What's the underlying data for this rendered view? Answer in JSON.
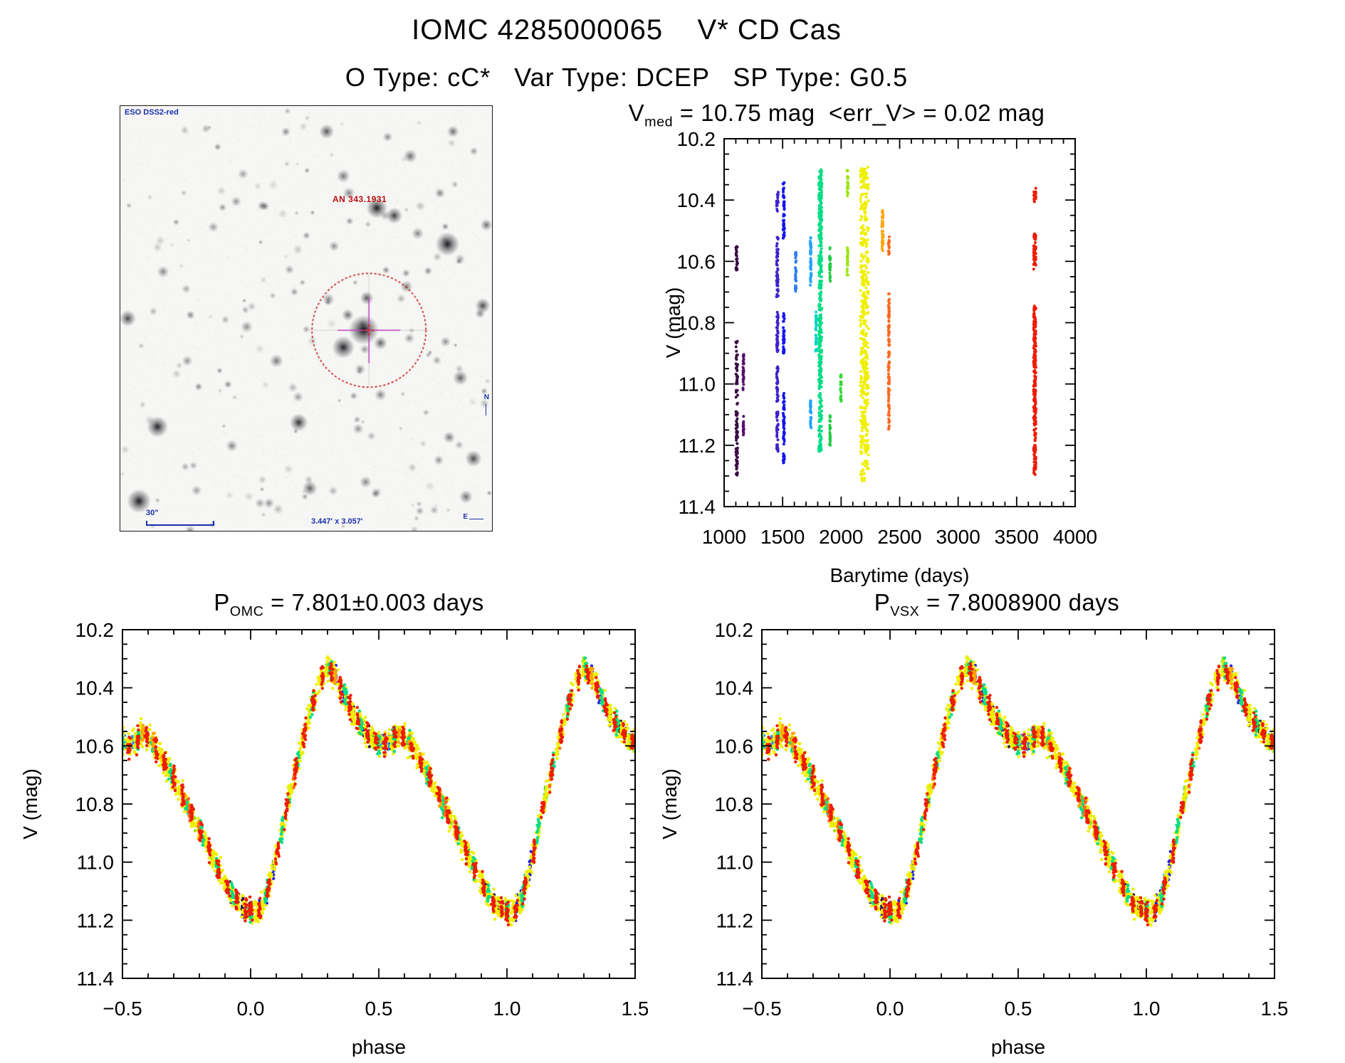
{
  "header": {
    "title": "IOMC 4285000065    V* CD Cas",
    "subtitle": "O Type: cC*   Var Type: DCEP   SP Type: G0.5"
  },
  "finder": {
    "survey_label": "ESO DSS2-red",
    "target_label": "AN 343.1931",
    "scale_label": "30\"",
    "fov_label": "3.447' x 3.057'",
    "compass_n": "N",
    "compass_e": "E",
    "annotation_color": "#1a2fae",
    "marker_color": "#c01010",
    "crosshair_color": "#c040c0"
  },
  "chart_data": [
    {
      "id": "barytime",
      "type": "scatter",
      "title_lead": "V",
      "title_sub": "med",
      "title_rest": " = 10.75 mag  <err_V> = 0.02 mag",
      "xlabel": "Barytime (days)",
      "ylabel": "V (mag)",
      "xlim": [
        1000,
        4000
      ],
      "ylim": [
        10.2,
        11.4
      ],
      "xticks": [
        1000,
        1500,
        2000,
        2500,
        3000,
        3500,
        4000
      ],
      "xtick_labels": [
        "1000",
        "1500",
        "2000",
        "2500",
        "3000",
        "3500",
        "4000"
      ],
      "yticks": [
        10.2,
        10.4,
        10.6,
        10.8,
        11.0,
        11.2,
        11.4
      ],
      "ytick_labels": [
        "10.2",
        "10.4",
        "10.6",
        "10.8",
        "11.0",
        "11.2",
        "11.4"
      ],
      "xminor": 100,
      "yminor": 0.05,
      "grid": false,
      "legend": "none",
      "epochs": [
        {
          "day": 1108,
          "spread": 16,
          "color": "#3a0d43",
          "segments": [
            [
              10.55,
              10.63
            ],
            [
              10.86,
              11.0
            ],
            [
              11.02,
              11.3
            ]
          ]
        },
        {
          "day": 1165,
          "spread": 8,
          "color": "#571070",
          "segments": [
            [
              10.9,
              11.02
            ],
            [
              11.1,
              11.17
            ]
          ]
        },
        {
          "day": 1455,
          "spread": 14,
          "color": "#3d23cc",
          "segments": [
            [
              10.37,
              10.44
            ],
            [
              10.52,
              10.72
            ],
            [
              10.76,
              10.9
            ],
            [
              10.94,
              11.06
            ],
            [
              11.09,
              11.22
            ]
          ]
        },
        {
          "day": 1510,
          "spread": 12,
          "color": "#1414f0",
          "segments": [
            [
              10.34,
              10.53
            ],
            [
              10.77,
              10.9
            ],
            [
              11.03,
              11.2
            ],
            [
              11.22,
              11.27
            ]
          ]
        },
        {
          "day": 1612,
          "spread": 8,
          "color": "#2f7df0",
          "segments": [
            [
              10.56,
              10.7
            ]
          ]
        },
        {
          "day": 1740,
          "spread": 10,
          "color": "#22a4ff",
          "segments": [
            [
              10.52,
              10.68
            ],
            [
              11.05,
              11.15
            ]
          ]
        },
        {
          "day": 1786,
          "spread": 8,
          "color": "#00d4c8",
          "segments": [
            [
              10.76,
              10.9
            ]
          ]
        },
        {
          "day": 1822,
          "spread": 26,
          "color": "#00dd84",
          "dense": true,
          "segments": [
            [
              10.3,
              11.22
            ]
          ]
        },
        {
          "day": 1905,
          "spread": 8,
          "color": "#22cc45",
          "segments": [
            [
              10.55,
              10.67
            ],
            [
              11.1,
              11.2
            ]
          ]
        },
        {
          "day": 1998,
          "spread": 8,
          "color": "#30d935",
          "segments": [
            [
              10.97,
              11.06
            ]
          ]
        },
        {
          "day": 2055,
          "spread": 8,
          "color": "#9ae409",
          "segments": [
            [
              10.3,
              10.39
            ],
            [
              10.55,
              10.65
            ]
          ]
        },
        {
          "day": 2200,
          "spread": 70,
          "color": "#efef00",
          "dense": true,
          "segments": [
            [
              10.29,
              11.32
            ]
          ]
        },
        {
          "day": 2355,
          "spread": 12,
          "color": "#ffa400",
          "segments": [
            [
              10.43,
              10.57
            ]
          ]
        },
        {
          "day": 2408,
          "spread": 10,
          "color": "#ff6a22",
          "segments": [
            [
              10.52,
              10.58
            ],
            [
              10.7,
              11.15
            ]
          ]
        },
        {
          "day": 3655,
          "spread": 20,
          "color": "#ee1c00",
          "dense": true,
          "segments": [
            [
              10.36,
              10.41
            ],
            [
              10.51,
              10.63
            ],
            [
              10.74,
              11.3
            ]
          ]
        }
      ]
    },
    {
      "id": "phase_omc",
      "type": "scatter",
      "title_lead": "P",
      "title_sub": "OMC",
      "title_rest": " = 7.801±0.003 days",
      "xlabel": "phase",
      "ylabel": "V (mag)",
      "xlim": [
        -0.5,
        1.5
      ],
      "ylim": [
        10.2,
        11.4
      ],
      "xticks": [
        -0.5,
        0.0,
        0.5,
        1.0,
        1.5
      ],
      "xtick_labels": [
        "−0.5",
        "0.0",
        "0.5",
        "1.0",
        "1.5"
      ],
      "yticks": [
        10.2,
        10.4,
        10.6,
        10.8,
        11.0,
        11.2,
        11.4
      ],
      "ytick_labels": [
        "10.2",
        "10.4",
        "10.6",
        "10.8",
        "11.0",
        "11.2",
        "11.4"
      ],
      "xminor": 0.1,
      "yminor": 0.05,
      "grid": false,
      "legend": "none",
      "period_days": 7.801,
      "light_curve_model": {
        "phases": [
          0.0,
          0.03,
          0.06,
          0.09,
          0.12,
          0.16,
          0.2,
          0.24,
          0.28,
          0.3,
          0.33,
          0.36,
          0.4,
          0.44,
          0.48,
          0.52,
          0.55,
          0.58,
          0.62,
          0.66,
          0.7,
          0.74,
          0.78,
          0.82,
          0.86,
          0.9,
          0.94,
          0.97,
          1.0
        ],
        "mags": [
          11.17,
          11.17,
          11.12,
          11.02,
          10.9,
          10.74,
          10.59,
          10.46,
          10.36,
          10.33,
          10.36,
          10.42,
          10.49,
          10.54,
          10.58,
          10.6,
          10.58,
          10.56,
          10.59,
          10.65,
          10.71,
          10.78,
          10.85,
          10.92,
          11.0,
          11.07,
          11.13,
          11.16,
          11.17
        ]
      },
      "stripe_groups": [
        {
          "name": "cyan",
          "color": "#00d4c8",
          "n": 10,
          "jitter": 0.006,
          "sigma": 0.035,
          "phases": [
            0.56,
            0.6
          ]
        },
        {
          "name": "light-blue",
          "color": "#22a4ff",
          "n": 11,
          "jitter": 0.006,
          "sigma": 0.035,
          "phases": [
            0.07,
            0.51,
            0.54
          ]
        },
        {
          "name": "blue",
          "color": "#2222e0",
          "n": 12,
          "jitter": 0.006,
          "sigma": 0.04,
          "phases": [
            0.035,
            0.06,
            0.09,
            0.33,
            0.36,
            0.52,
            0.55,
            0.97
          ]
        },
        {
          "name": "dark-purple",
          "color": "#3a0d43",
          "n": 12,
          "jitter": 0.005,
          "sigma": 0.04,
          "phases": [
            0.4,
            0.44,
            0.46,
            0.92,
            0.95,
            0.97,
            1.0
          ]
        },
        {
          "name": "green",
          "color": "#22cc45",
          "n": 11,
          "jitter": 0.006,
          "sigma": 0.04,
          "phases": [
            0.15,
            0.48,
            0.85
          ]
        },
        {
          "name": "chartreuse",
          "color": "#9ae409",
          "n": 11,
          "jitter": 0.006,
          "sigma": 0.04,
          "phases": [
            0.3,
            0.62,
            0.78
          ]
        },
        {
          "name": "yellow",
          "color": "#efef00",
          "n": 26,
          "jitter": 0.013,
          "sigma": 0.05,
          "phases": [
            0.0,
            0.025,
            0.05,
            0.075,
            0.1,
            0.125,
            0.15,
            0.175,
            0.2,
            0.225,
            0.25,
            0.275,
            0.3,
            0.325,
            0.35,
            0.375,
            0.4,
            0.425,
            0.45,
            0.475,
            0.5,
            0.525,
            0.55,
            0.575,
            0.6,
            0.625,
            0.65,
            0.675,
            0.7,
            0.725,
            0.75,
            0.775,
            0.8,
            0.825,
            0.85,
            0.875,
            0.9,
            0.925,
            0.95,
            0.975
          ]
        },
        {
          "name": "spring-green",
          "color": "#00dd84",
          "n": 15,
          "jitter": 0.009,
          "sigma": 0.045,
          "phases": [
            0.0,
            0.06,
            0.12,
            0.18,
            0.24,
            0.31,
            0.37,
            0.43,
            0.5,
            0.56,
            0.62,
            0.69,
            0.75,
            0.81,
            0.87,
            0.93
          ]
        },
        {
          "name": "orange",
          "color": "#ffa400",
          "n": 12,
          "jitter": 0.007,
          "sigma": 0.04,
          "phases": [
            0.33,
            0.58,
            0.62,
            0.66,
            0.7,
            0.74
          ]
        },
        {
          "name": "orange-red",
          "color": "#ff6a22",
          "n": 12,
          "jitter": 0.006,
          "sigma": 0.04,
          "phases": [
            0.17,
            0.21,
            0.76,
            0.8
          ]
        },
        {
          "name": "red",
          "color": "#ee1c00",
          "n": 18,
          "jitter": 0.008,
          "sigma": 0.045,
          "phases": [
            0.0,
            0.035,
            0.07,
            0.105,
            0.14,
            0.175,
            0.21,
            0.245,
            0.28,
            0.315,
            0.35,
            0.385,
            0.42,
            0.455,
            0.49,
            0.525,
            0.56,
            0.595,
            0.63,
            0.665,
            0.7,
            0.735,
            0.77,
            0.805,
            0.84,
            0.875,
            0.91,
            0.945,
            0.98
          ]
        }
      ]
    },
    {
      "id": "phase_vsx",
      "type": "scatter",
      "title_lead": "P",
      "title_sub": "VSX",
      "title_rest": " = 7.8008900 days",
      "xlabel": "phase",
      "ylabel": "V (mag)",
      "xlim": [
        -0.5,
        1.5
      ],
      "ylim": [
        10.2,
        11.4
      ],
      "xticks": [
        -0.5,
        0.0,
        0.5,
        1.0,
        1.5
      ],
      "xtick_labels": [
        "−0.5",
        "0.0",
        "0.5",
        "1.0",
        "1.5"
      ],
      "yticks": [
        10.2,
        10.4,
        10.6,
        10.8,
        11.0,
        11.2,
        11.4
      ],
      "ytick_labels": [
        "10.2",
        "10.4",
        "10.6",
        "10.8",
        "11.0",
        "11.2",
        "11.4"
      ],
      "xminor": 0.1,
      "yminor": 0.05,
      "grid": false,
      "legend": "none",
      "period_days": 7.80089,
      "same_data_as": "phase_omc"
    }
  ]
}
